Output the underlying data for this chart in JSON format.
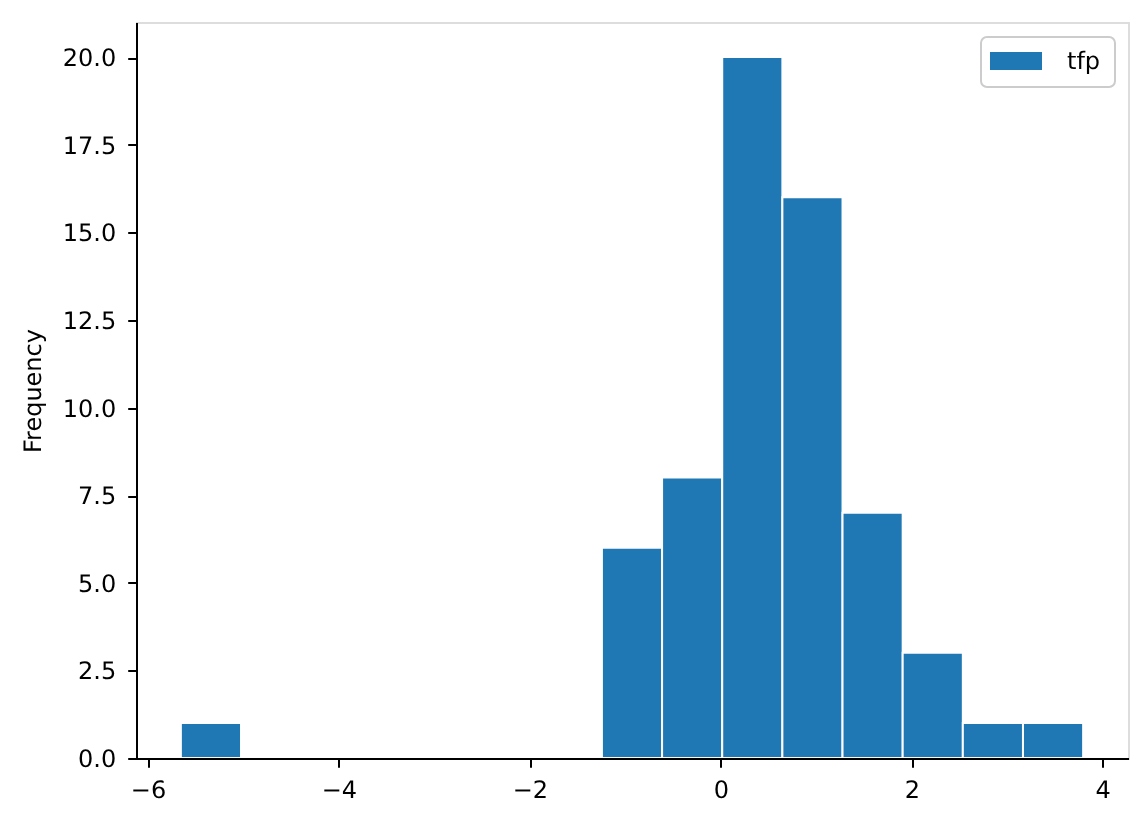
{
  "chart_data": {
    "type": "histogram",
    "ylabel": "Frequency",
    "bins": [
      -5.65,
      -5.02,
      -1.24,
      -0.61,
      0.02,
      0.65,
      1.28,
      1.91,
      2.54,
      3.17,
      3.8
    ],
    "series": [
      {
        "name": "tfp",
        "color": "#1f77b4",
        "values": [
          1,
          0,
          6,
          8,
          20,
          16,
          7,
          3,
          1,
          1
        ]
      }
    ],
    "xlim": [
      -6.12,
      4.27
    ],
    "xticks": [
      {
        "value": -6,
        "label": "−6"
      },
      {
        "value": -4,
        "label": "−4"
      },
      {
        "value": -2,
        "label": "−2"
      },
      0,
      2,
      4
    ],
    "ylim": [
      0,
      21
    ],
    "yticks": [
      {
        "value": 0,
        "label": "0.0"
      },
      2.5,
      {
        "value": 5,
        "label": "5.0"
      },
      7.5,
      {
        "value": 10,
        "label": "10.0"
      },
      12.5,
      {
        "value": 15,
        "label": "15.0"
      },
      17.5,
      {
        "value": 20,
        "label": "20.0"
      }
    ],
    "legend": "top right",
    "grid": false
  }
}
